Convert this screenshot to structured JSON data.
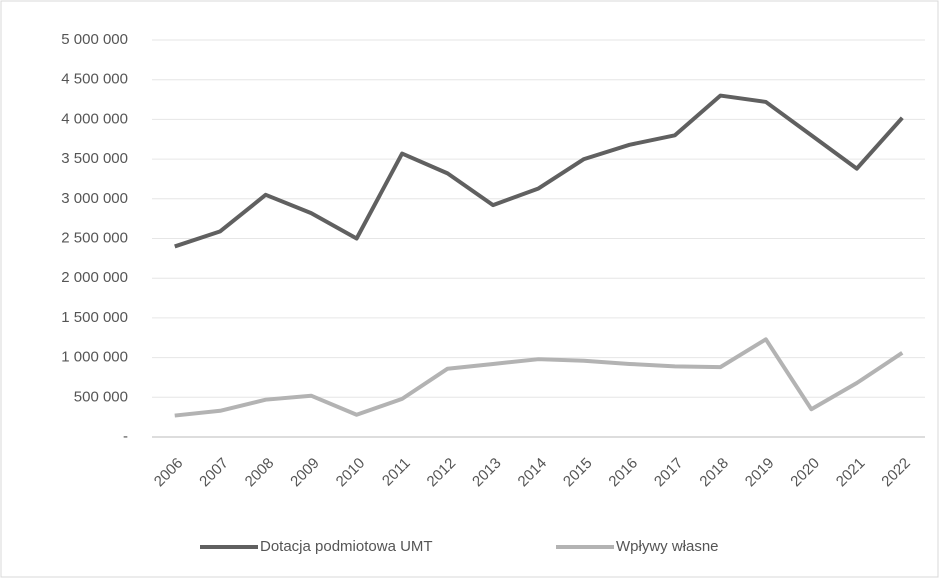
{
  "chart_data": {
    "type": "line",
    "categories": [
      "2006",
      "2007",
      "2008",
      "2009",
      "2010",
      "2011",
      "2012",
      "2013",
      "2014",
      "2015",
      "2016",
      "2017",
      "2018",
      "2019",
      "2020",
      "2021",
      "2022"
    ],
    "series": [
      {
        "name": "Dotacja podmiotowa UMT",
        "color": "#606060",
        "values": [
          2400000,
          2590000,
          3050000,
          2820000,
          2500000,
          3570000,
          3320000,
          2920000,
          3130000,
          3500000,
          3680000,
          3800000,
          4300000,
          4220000,
          3800000,
          3380000,
          4020000
        ]
      },
      {
        "name": "Wpływy własne",
        "color": "#b3b3b3",
        "values": [
          270000,
          330000,
          470000,
          520000,
          280000,
          480000,
          860000,
          920000,
          980000,
          960000,
          920000,
          890000,
          880000,
          1230000,
          350000,
          680000,
          1060000
        ]
      }
    ],
    "ylim": [
      0,
      5000000
    ],
    "yticks": [
      {
        "value": 0,
        "label": "-"
      },
      {
        "value": 500000,
        "label": "500 000"
      },
      {
        "value": 1000000,
        "label": "1 000 000"
      },
      {
        "value": 1500000,
        "label": "1 500 000"
      },
      {
        "value": 2000000,
        "label": "2 000 000"
      },
      {
        "value": 2500000,
        "label": "2 500 000"
      },
      {
        "value": 3000000,
        "label": "3 000 000"
      },
      {
        "value": 3500000,
        "label": "3 500 000"
      },
      {
        "value": 4000000,
        "label": "4 000 000"
      },
      {
        "value": 4500000,
        "label": "4 500 000"
      },
      {
        "value": 5000000,
        "label": "5 000 000"
      }
    ],
    "grid": true,
    "legend": "bottom"
  }
}
